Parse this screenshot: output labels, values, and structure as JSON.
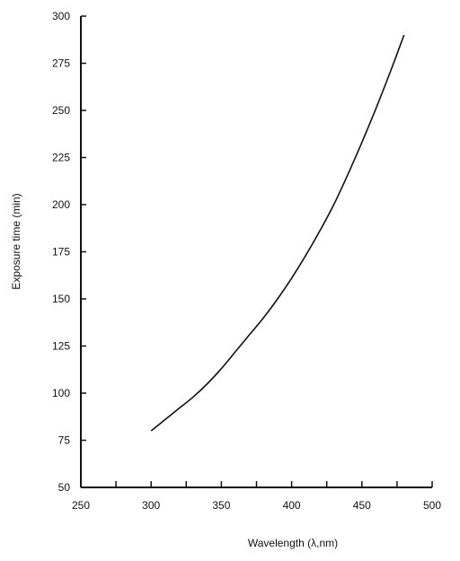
{
  "chart_data": {
    "type": "line",
    "title": "",
    "xlabel": "Wavelength  (λ,nm)",
    "ylabel": "Exposure time (min)",
    "xlim": [
      250,
      500
    ],
    "ylim": [
      50,
      300
    ],
    "x_ticks": [
      250,
      300,
      350,
      400,
      450,
      500
    ],
    "x_minor_ticks": [
      275,
      325,
      375,
      425,
      475
    ],
    "y_ticks": [
      50,
      75,
      100,
      125,
      150,
      175,
      200,
      225,
      250,
      275,
      300
    ],
    "grid": false,
    "series": [
      {
        "color": "#111111",
        "x": [
          300,
          310,
          320,
          330,
          340,
          350,
          360,
          370,
          380,
          390,
          400,
          410,
          420,
          430,
          440,
          450,
          460,
          470,
          480
        ],
        "y": [
          80,
          86,
          92,
          98,
          105,
          113,
          122,
          131,
          140,
          150,
          161,
          173,
          186,
          200,
          216,
          233,
          251,
          270,
          290
        ]
      }
    ]
  }
}
